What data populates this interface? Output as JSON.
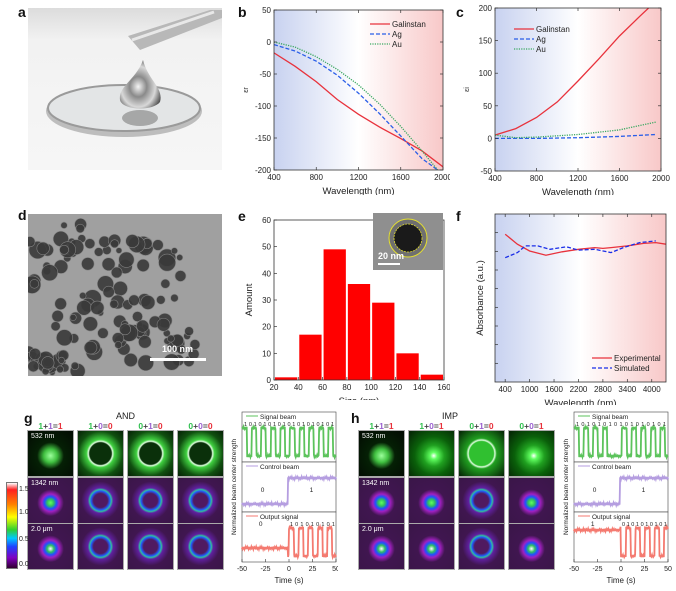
{
  "panels": {
    "a": {
      "label": "a",
      "description": "Photo of liquid metal droplet on glass disk dispensed from syringe"
    },
    "d": {
      "label": "d",
      "scale_bar": "100 nm"
    },
    "e_inset": {
      "scale_bar": "20 nm"
    },
    "g": {
      "label": "g",
      "gate": "AND",
      "headers": [
        {
          "a": "1",
          "b": "1",
          "out": "1"
        },
        {
          "a": "1",
          "b": "0",
          "out": "0"
        },
        {
          "a": "0",
          "b": "1",
          "out": "0"
        },
        {
          "a": "0",
          "b": "0",
          "out": "0"
        }
      ],
      "row_labels": [
        "532 nm",
        "1342 nm",
        "2.0 μm"
      ],
      "traces": {
        "signal_label": "Signal beam",
        "signal_bits": "1 0 1 0 1 0 1 0 1 0 1 0 1 0 1 0 1 0 1",
        "control_label": "Control beam",
        "control_bits": [
          "0",
          "1"
        ],
        "output_label": "Output signal",
        "output_bits": [
          "0",
          "1 0 1 0 1 0 1 0 1"
        ],
        "ylabel": "Normalized beam center strength",
        "xlabel": "Time (s)",
        "xticks": [
          "-50",
          "-25",
          "0",
          "25",
          "50"
        ]
      }
    },
    "h": {
      "label": "h",
      "gate": "IMP",
      "headers": [
        {
          "a": "1",
          "b": "1",
          "out": "1"
        },
        {
          "a": "1",
          "b": "0",
          "out": "1"
        },
        {
          "a": "0",
          "b": "1",
          "out": "0"
        },
        {
          "a": "0",
          "b": "0",
          "out": "1"
        }
      ],
      "row_labels": [
        "532 nm",
        "1342 nm",
        "2.0 μm"
      ],
      "traces": {
        "signal_label": "Signal beam",
        "signal_bits": "1 0 1 0 1 0 1 0 1 0 1 0 1 0 1 0 1",
        "control_label": "Control beam",
        "control_bits": [
          "0",
          "1"
        ],
        "output_label": "Output signal",
        "output_bits": [
          "1",
          "0 1 0 1 0 1 0 1 0 1"
        ],
        "ylabel": "Normalized beam center strength",
        "xlabel": "Time (s)",
        "xticks": [
          "-50",
          "-25",
          "0",
          "25",
          "50"
        ]
      }
    },
    "colorbar": {
      "ticks": [
        "1.5",
        "1.0",
        "0.5",
        "0.0"
      ]
    }
  },
  "chart_data": [
    {
      "id": "b",
      "label": "b",
      "type": "line",
      "xlabel": "Wavelength (nm)",
      "ylabel": "εr",
      "xlim": [
        400,
        2000
      ],
      "ylim": [
        -200,
        50
      ],
      "xticks": [
        400,
        800,
        1200,
        1600,
        2000
      ],
      "yticks": [
        50,
        0,
        -50,
        -100,
        -150,
        -200
      ],
      "legend": "top-right",
      "series": [
        {
          "name": "Galinstan",
          "color": "#e8323c",
          "dash": "solid",
          "x": [
            400,
            600,
            800,
            1000,
            1200,
            1400,
            1600,
            1800,
            2000
          ],
          "y": [
            -17,
            -38,
            -62,
            -90,
            -113,
            -133,
            -151,
            -170,
            -195
          ]
        },
        {
          "name": "Ag",
          "color": "#2a5ee8",
          "dash": "dashed",
          "x": [
            400,
            600,
            800,
            1000,
            1200,
            1400,
            1600,
            1800,
            1950
          ],
          "y": [
            -4,
            -14,
            -30,
            -52,
            -80,
            -112,
            -147,
            -182,
            -200
          ]
        },
        {
          "name": "Au",
          "color": "#3aa860",
          "dash": "dotted",
          "x": [
            400,
            600,
            800,
            1000,
            1200,
            1400,
            1600,
            1800,
            1950
          ],
          "y": [
            0,
            -8,
            -23,
            -43,
            -67,
            -97,
            -132,
            -170,
            -200
          ]
        }
      ]
    },
    {
      "id": "c",
      "label": "c",
      "type": "line",
      "xlabel": "Wavelength (nm)",
      "ylabel": "εi",
      "xlim": [
        400,
        2000
      ],
      "ylim": [
        -50,
        200
      ],
      "xticks": [
        400,
        800,
        1200,
        1600,
        2000
      ],
      "yticks": [
        200,
        150,
        100,
        50,
        0,
        -50
      ],
      "legend": "top-left",
      "series": [
        {
          "name": "Galinstan",
          "color": "#e8323c",
          "dash": "solid",
          "x": [
            400,
            600,
            800,
            1000,
            1200,
            1400,
            1600,
            1800,
            1880
          ],
          "y": [
            5,
            15,
            32,
            56,
            88,
            122,
            157,
            188,
            200
          ]
        },
        {
          "name": "Ag",
          "color": "#2a5ee8",
          "dash": "dashed",
          "x": [
            400,
            800,
            1200,
            1600,
            1950
          ],
          "y": [
            0,
            0,
            1,
            3,
            6
          ]
        },
        {
          "name": "Au",
          "color": "#3aa860",
          "dash": "dotted",
          "x": [
            400,
            600,
            800,
            1200,
            1600,
            1950
          ],
          "y": [
            5,
            1,
            2,
            6,
            13,
            25
          ]
        }
      ]
    },
    {
      "id": "e",
      "label": "e",
      "type": "bar",
      "xlabel": "Size (nm)",
      "ylabel": "Amount",
      "xlim": [
        20,
        160
      ],
      "ylim": [
        0,
        60
      ],
      "xticks": [
        20,
        40,
        60,
        80,
        100,
        120,
        140,
        160
      ],
      "yticks": [
        0,
        10,
        20,
        30,
        40,
        50,
        60
      ],
      "bin_edges": [
        20,
        40,
        60,
        80,
        100,
        120,
        140,
        160
      ],
      "values": [
        1,
        17,
        49,
        36,
        29,
        10,
        2
      ],
      "color": "#ff0000"
    },
    {
      "id": "f",
      "label": "f",
      "type": "line",
      "xlabel": "Wavelength (nm)",
      "ylabel": "Absorbance (a.u.)",
      "xlim": [
        150,
        4350
      ],
      "ylim": [
        0,
        1
      ],
      "xticks": [
        400,
        1000,
        1600,
        2200,
        2800,
        3400,
        4000
      ],
      "legend": "bottom-right",
      "series": [
        {
          "name": "Experimental",
          "color": "#e8323c",
          "dash": "solid",
          "x": [
            400,
            700,
            1000,
            1400,
            1800,
            2200,
            2600,
            2800,
            3000,
            3400,
            3800,
            4100,
            4350
          ],
          "y": [
            0.88,
            0.82,
            0.78,
            0.755,
            0.775,
            0.79,
            0.8,
            0.795,
            0.8,
            0.81,
            0.825,
            0.83,
            0.82
          ]
        },
        {
          "name": "Simulated",
          "color": "#1a2ee8",
          "dash": "dashed",
          "x": [
            400,
            700,
            900,
            1200,
            1500,
            1900,
            2200,
            2600,
            3000,
            3300,
            3700,
            4100
          ],
          "y": [
            0.74,
            0.77,
            0.81,
            0.81,
            0.79,
            0.805,
            0.785,
            0.79,
            0.77,
            0.8,
            0.83,
            0.84
          ]
        }
      ]
    }
  ]
}
